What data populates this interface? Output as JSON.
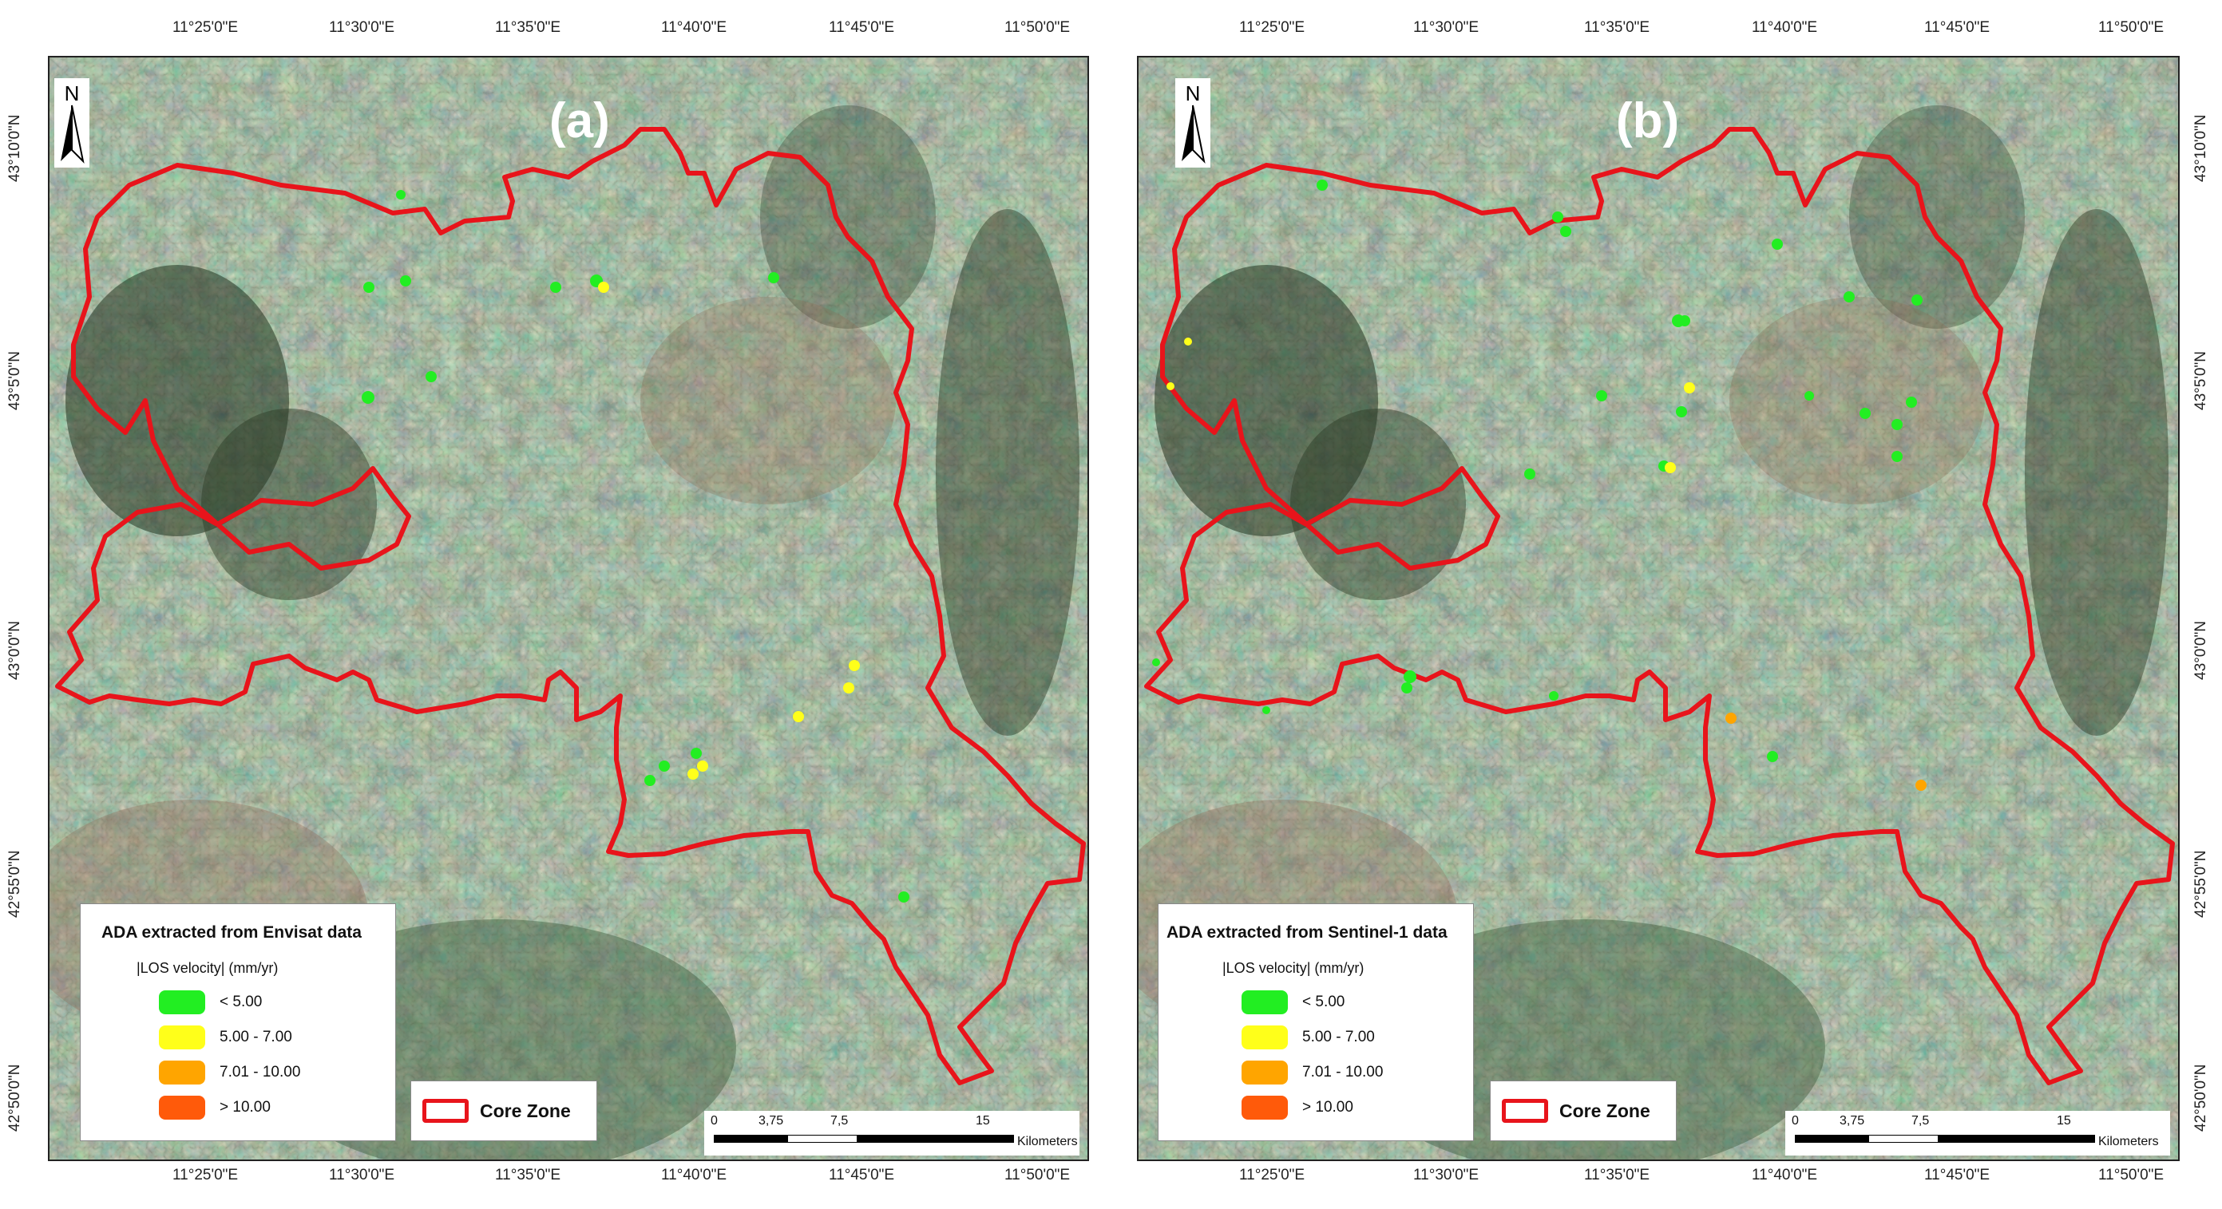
{
  "colors": {
    "core_zone": "#e8141b",
    "class_lt5": "#22ee22",
    "class_5_7": "#ffff1a",
    "class_7_10": "#ffa500",
    "class_gt10": "#ff5a0a"
  },
  "icons": [
    "north-arrow-icon"
  ],
  "axes": {
    "top_ticks": [
      "11°25'0\"E",
      "11°30'0\"E",
      "11°35'0\"E",
      "11°40'0\"E",
      "11°45'0\"E",
      "11°50'0\"E"
    ],
    "bottom_ticks": [
      "11°25'0\"E",
      "11°30'0\"E",
      "11°35'0\"E",
      "11°40'0\"E",
      "11°45'0\"E",
      "11°50'0\"E"
    ],
    "left_ticks": [
      "43°10'0\"N",
      "43°5'0\"N",
      "43°0'0\"N",
      "42°55'0\"N",
      "42°50'0\"N"
    ]
  },
  "north_label": "N",
  "panels": [
    {
      "label": "(a)",
      "legend": {
        "title": "ADA extracted from Envisat data",
        "subtitle": "|LOS velocity| (mm/yr)",
        "classes": [
          {
            "label": "< 5.00",
            "color": "#22ee22"
          },
          {
            "label": "5.00 - 7.00",
            "color": "#ffff1a"
          },
          {
            "label": "7.01 - 10.00",
            "color": "#ffa500"
          },
          {
            "label": "> 10.00",
            "color": "#ff5a0a"
          }
        ]
      },
      "core_zone_label": "Core Zone",
      "scale": {
        "ticks": [
          "0",
          "3,75",
          "7,5",
          "15"
        ],
        "unit": "Kilometers"
      }
    },
    {
      "label": "(b)",
      "legend": {
        "title": "ADA extracted from Sentinel-1 data",
        "subtitle": "|LOS velocity| (mm/yr)",
        "classes": [
          {
            "label": "< 5.00",
            "color": "#22ee22"
          },
          {
            "label": "5.00 - 7.00",
            "color": "#ffff1a"
          },
          {
            "label": "7.01 - 10.00",
            "color": "#ffa500"
          },
          {
            "label": "> 10.00",
            "color": "#ff5a0a"
          }
        ]
      },
      "core_zone_label": "Core Zone",
      "scale": {
        "ticks": [
          "0",
          "3,75",
          "7,5",
          "15"
        ],
        "unit": "Kilometers"
      }
    }
  ]
}
